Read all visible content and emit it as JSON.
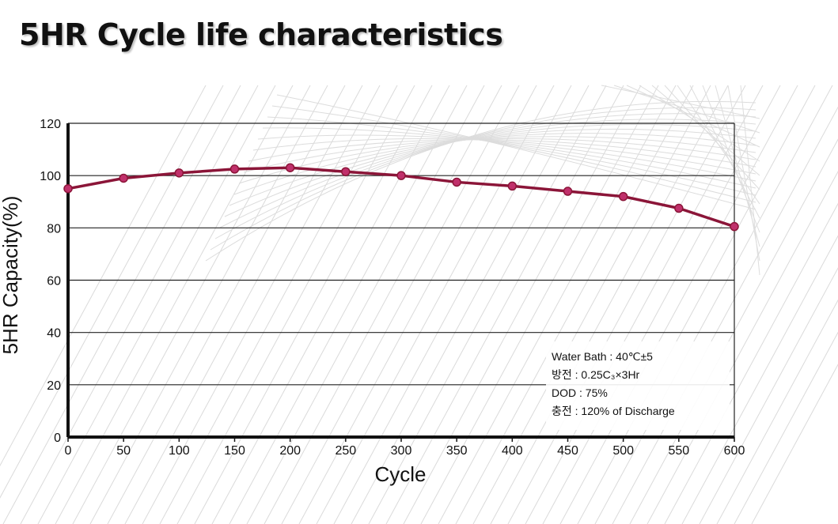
{
  "page": {
    "title": "5HR Cycle life characteristics"
  },
  "chart_data": {
    "type": "line",
    "title": "5HR Cycle life characteristics",
    "xlabel": "Cycle",
    "ylabel": "5HR Capacity(%)",
    "xlim": [
      0,
      600
    ],
    "ylim": [
      0,
      120
    ],
    "x_ticks": [
      "0",
      "50",
      "100",
      "150",
      "200",
      "250",
      "300",
      "350",
      "400",
      "450",
      "500",
      "550",
      "600"
    ],
    "y_ticks": [
      "0",
      "20",
      "40",
      "60",
      "80",
      "100",
      "120"
    ],
    "grid": "horizontal",
    "series": [
      {
        "x": [
          0,
          50,
          100,
          150,
          200,
          250,
          300,
          350,
          400,
          450,
          500,
          550,
          600
        ],
        "values": [
          95,
          99,
          101,
          102.5,
          103,
          101.5,
          100,
          97.5,
          96,
          94,
          92,
          87.5,
          80.5
        ],
        "color": "#8b1538"
      }
    ],
    "annotations": [
      "Water Bath : 40℃±5",
      "방전 : 0.25C₃×3Hr",
      "DOD : 75%",
      "충전 : 120% of Discharge"
    ]
  }
}
